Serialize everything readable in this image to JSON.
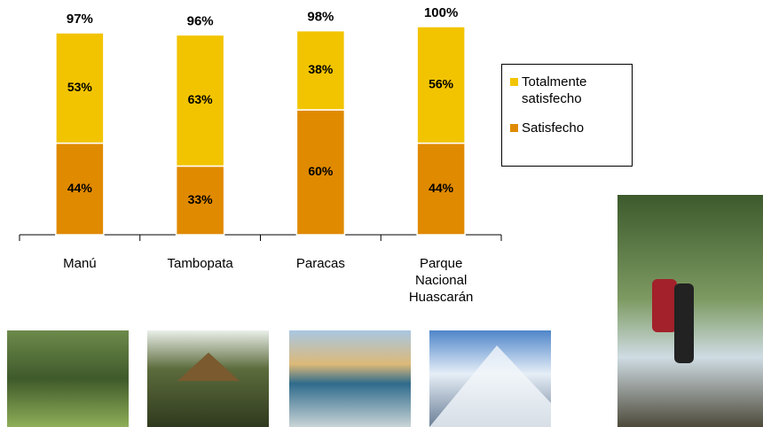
{
  "chart_data": {
    "type": "stacked-bar",
    "categories": [
      "Manú",
      "Tambopata",
      "Paracas",
      "Parque Nacional Huascarán"
    ],
    "series": [
      {
        "name": "Satisfecho",
        "color": "#e08a00",
        "values": [
          44,
          33,
          60,
          44
        ],
        "value_labels": [
          "44%",
          "33%",
          "60%",
          "44%"
        ]
      },
      {
        "name": "Totalmente satisfecho",
        "color": "#f2c400",
        "values": [
          53,
          63,
          38,
          56
        ],
        "value_labels": [
          "53%",
          "63%",
          "38%",
          "56%"
        ]
      }
    ],
    "totals": {
      "values": [
        97,
        96,
        98,
        100
      ],
      "value_labels": [
        "97%",
        "96%",
        "98%",
        "100%"
      ]
    }
  }
}
